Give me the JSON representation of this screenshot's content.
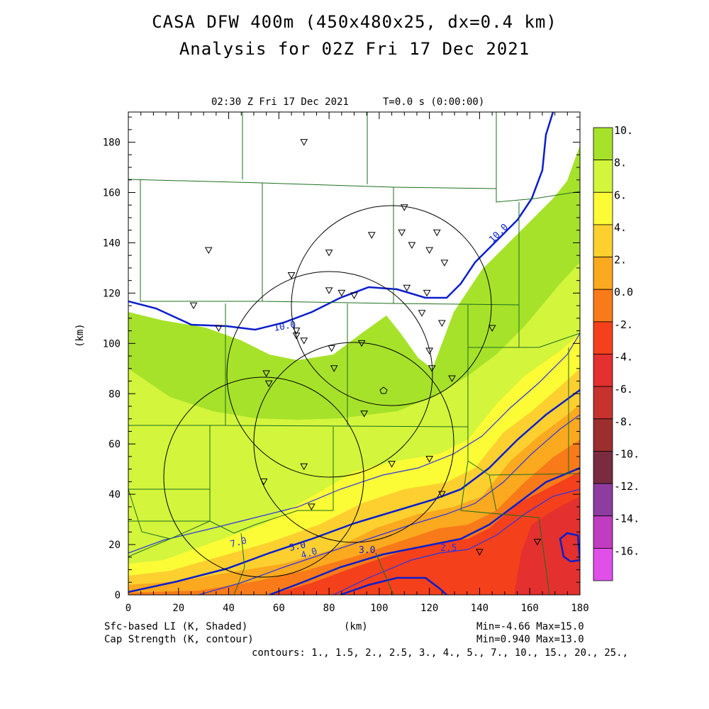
{
  "header": {
    "title_line1": "CASA DFW 400m (450x480x25, dx=0.4 km)",
    "title_line2": "Analysis for 02Z Fri 17 Dec 2021",
    "valid_time": "02:30 Z Fri 17 Dec 2021",
    "time_offset": "T=0.0 s (0:00:00)"
  },
  "axes": {
    "x_label": "(km)",
    "y_label": "(km)",
    "x_ticks": [
      "0",
      "20",
      "40",
      "60",
      "80",
      "100",
      "120",
      "140",
      "160",
      "180"
    ],
    "y_ticks": [
      "0",
      "20",
      "40",
      "60",
      "80",
      "100",
      "120",
      "140",
      "160",
      "180"
    ],
    "x_range": [
      0,
      180
    ],
    "y_range": [
      0,
      192
    ]
  },
  "colorbar": {
    "labels": [
      "10.",
      "8.",
      "6.",
      "4.",
      "2.",
      "0.0",
      "-2.",
      "-4.",
      "-6.",
      "-8.",
      "-10.",
      "-12.",
      "-14.",
      "-16."
    ],
    "colors": [
      "#a6e22a",
      "#d3f53c",
      "#fbfb36",
      "#fdd02f",
      "#fba91f",
      "#f87a18",
      "#f5401c",
      "#e4302e",
      "#c7322f",
      "#9c2e2e",
      "#7a2b40",
      "#8e3ca0",
      "#c03cc0",
      "#e050e8"
    ]
  },
  "contour_labels": [
    "10.0",
    "10.0",
    "7.0",
    "5.0",
    "4.0",
    "3.0",
    "2.5"
  ],
  "footer": {
    "left_line1": "Sfc-based LI (K, Shaded)",
    "left_line2": "Cap Strength (K, contour)",
    "center": "(km)",
    "right_line1": "Min=-4.66 Max=15.0",
    "right_line2": "Min=0.940 Max=13.0",
    "contours": "contours: 1., 1.5, 2., 2.5, 3., 4., 5., 7., 10., 15., 20., 25.,"
  },
  "stations": [
    [
      70,
      180
    ],
    [
      32,
      137
    ],
    [
      26,
      115
    ],
    [
      36,
      106
    ],
    [
      65,
      127
    ],
    [
      80,
      136
    ],
    [
      97,
      143
    ],
    [
      110,
      154
    ],
    [
      109,
      144
    ],
    [
      113,
      139
    ],
    [
      120,
      137
    ],
    [
      123,
      144
    ],
    [
      126,
      132
    ],
    [
      80,
      121
    ],
    [
      85,
      120
    ],
    [
      90,
      119
    ],
    [
      111,
      122
    ],
    [
      119,
      120
    ],
    [
      117,
      112
    ],
    [
      125,
      108
    ],
    [
      145,
      106
    ],
    [
      67,
      105
    ],
    [
      67,
      103
    ],
    [
      70,
      101
    ],
    [
      81,
      98
    ],
    [
      93,
      100
    ],
    [
      120,
      97
    ],
    [
      82,
      90
    ],
    [
      121,
      90
    ],
    [
      129,
      86
    ],
    [
      55,
      88
    ],
    [
      56,
      84
    ],
    [
      94,
      72
    ],
    [
      70,
      51
    ],
    [
      105,
      52
    ],
    [
      120,
      54
    ],
    [
      54,
      45
    ],
    [
      125,
      40
    ],
    [
      73,
      35
    ],
    [
      140,
      17
    ],
    [
      163,
      21
    ]
  ],
  "radar_center": [
    102,
    82
  ],
  "radar_rings": [
    {
      "cx": 108,
      "cy": 115,
      "r": 40
    },
    {
      "cx": 79,
      "cy": 89,
      "r": 42
    },
    {
      "cx": 99,
      "cy": 64,
      "r": 40
    },
    {
      "cx": 52,
      "cy": 48,
      "r": 40
    }
  ]
}
